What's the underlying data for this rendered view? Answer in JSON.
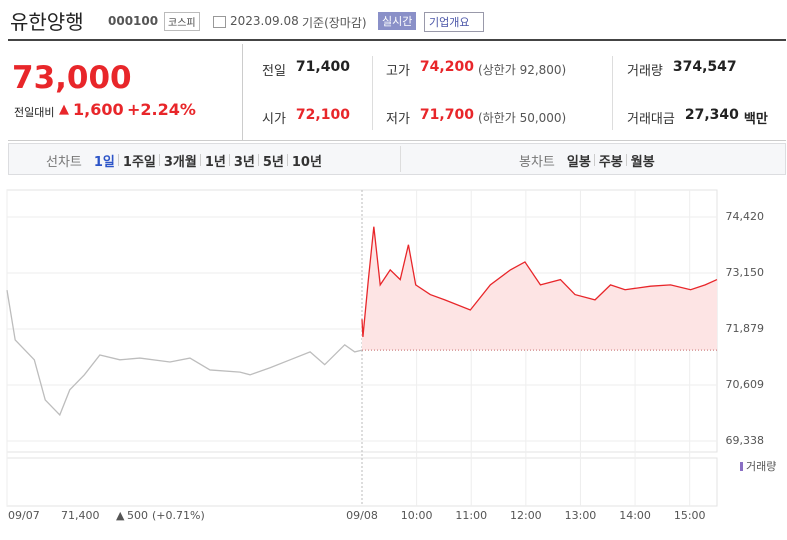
{
  "header": {
    "name": "유한양행",
    "code": "000100",
    "market": "코스피",
    "date": "2023.09.08",
    "basis": "기준(장마감)",
    "realtime": "실시간",
    "company_info": "기업개요"
  },
  "price": {
    "current": "73,000",
    "change_label": "전일대비",
    "change": "1,600",
    "change_pct": "+2.24%"
  },
  "stats": [
    {
      "label": "전일",
      "value": "71,400"
    },
    {
      "label": "고가",
      "value": "74,200",
      "note": "(상한가 92,800)"
    },
    {
      "label": "거래량",
      "value": "374,547"
    },
    {
      "label": "시가",
      "value": "72,100"
    },
    {
      "label": "저가",
      "value": "71,700",
      "note": "(하한가 50,000)"
    },
    {
      "label": "거래대금",
      "value": "27,340",
      "unit": "백만"
    }
  ],
  "tabs": {
    "line_label": "선차트",
    "line": [
      "1일",
      "1주일",
      "3개월",
      "1년",
      "3년",
      "5년",
      "10년"
    ],
    "candle_label": "봉차트",
    "candle": [
      "일봉",
      "주봉",
      "월봉"
    ]
  },
  "chart_data": {
    "type": "line",
    "xlim": [
      0,
      780
    ],
    "ylim": [
      69089,
      75032
    ],
    "xticks": [
      {
        "value": 0,
        "label": "09/07"
      },
      {
        "value": 390,
        "label": "09/08"
      },
      {
        "value": 450,
        "label": "10:00"
      },
      {
        "value": 510,
        "label": "11:00"
      },
      {
        "value": 570,
        "label": "12:00"
      },
      {
        "value": 630,
        "label": "13:00"
      },
      {
        "value": 690,
        "label": "14:00"
      },
      {
        "value": 750,
        "label": "15:00"
      }
    ],
    "yticks": [
      {
        "value": 69338,
        "label": "69,338"
      },
      {
        "value": 70609,
        "label": "70,609"
      },
      {
        "value": 71879,
        "label": "71,879"
      },
      {
        "value": 73150,
        "label": "73,150"
      },
      {
        "value": 74420,
        "label": "74,420"
      }
    ],
    "baseline": 71400,
    "grid": true,
    "series": [
      {
        "color": "#bdbdbd",
        "x": [
          0,
          9,
          30,
          42,
          58,
          69,
          85,
          102,
          124,
          146,
          179,
          201,
          223,
          256,
          267,
          289,
          311,
          333,
          349,
          371,
          382,
          390
        ],
        "values": [
          72760,
          71630,
          71180,
          70270,
          69930,
          70500,
          70840,
          71290,
          71180,
          71220,
          71130,
          71220,
          70950,
          70900,
          70840,
          71000,
          71180,
          71360,
          71070,
          71520,
          71360,
          71400
        ]
      },
      {
        "color": "#e8262a",
        "x": [
          390,
          391,
          397,
          403,
          410,
          421,
          432,
          441,
          449,
          465,
          481,
          509,
          531,
          553,
          569,
          586,
          608,
          624,
          646,
          663,
          679,
          707,
          729,
          751,
          767,
          780
        ],
        "values": [
          72100,
          71700,
          73000,
          74200,
          72880,
          73220,
          73000,
          73790,
          72880,
          72660,
          72540,
          72310,
          72880,
          73220,
          73400,
          72880,
          73000,
          72660,
          72540,
          72880,
          72770,
          72850,
          72880,
          72770,
          72880,
          73000
        ]
      }
    ],
    "volume_label": "거래량",
    "footer": {
      "price": "71,400",
      "change": "500",
      "change_pct": "(+0.71%)"
    }
  }
}
